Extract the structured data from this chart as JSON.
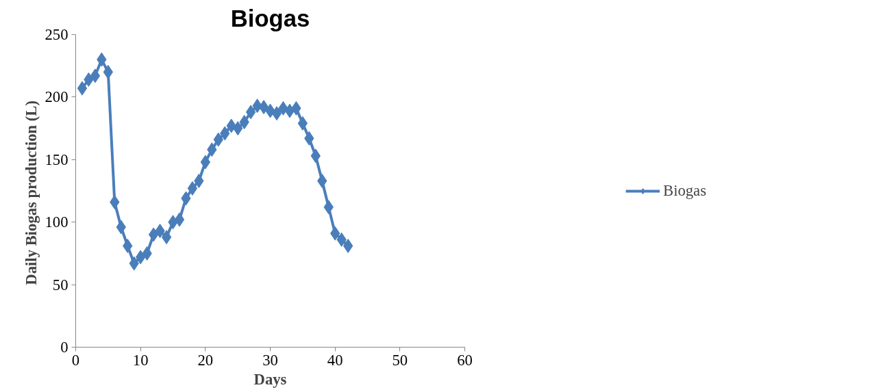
{
  "chart_data": {
    "type": "line",
    "title": "Biogas",
    "xlabel": "Days",
    "ylabel": "Daily Biogas production  (L)",
    "x": [
      1,
      2,
      3,
      4,
      5,
      6,
      7,
      8,
      9,
      10,
      11,
      12,
      13,
      14,
      15,
      16,
      17,
      18,
      19,
      20,
      21,
      22,
      23,
      24,
      25,
      26,
      27,
      28,
      29,
      30,
      31,
      32,
      33,
      34,
      35,
      36,
      37,
      38,
      39,
      40,
      41,
      42
    ],
    "series": [
      {
        "name": "Biogas",
        "color": "#4a7ebb",
        "values": [
          207,
          214,
          217,
          230,
          220,
          116,
          96,
          81,
          67,
          72,
          75,
          90,
          93,
          88,
          100,
          102,
          119,
          127,
          133,
          148,
          158,
          166,
          171,
          177,
          175,
          180,
          188,
          193,
          192,
          189,
          187,
          191,
          189,
          191,
          179,
          167,
          153,
          133,
          112,
          91,
          86,
          81
        ]
      }
    ],
    "xlim": [
      0,
      60
    ],
    "xticks": [
      0,
      10,
      20,
      30,
      40,
      50,
      60
    ],
    "ylim": [
      0,
      250
    ],
    "yticks": [
      0,
      50,
      100,
      150,
      200,
      250
    ],
    "grid": false,
    "legend": "right",
    "marker": "diamond",
    "line_style": "solid"
  }
}
